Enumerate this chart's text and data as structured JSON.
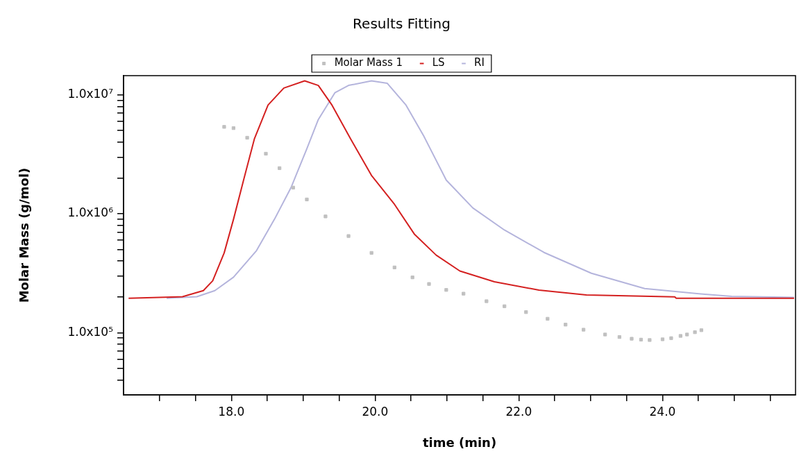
{
  "chart_data": {
    "type": "line",
    "title": "Results Fitting",
    "xlabel": "time (min)",
    "ylabel": "Molar Mass (g/mol)",
    "log": "y",
    "grid": false,
    "legend": "top",
    "line_style": "solid",
    "xlim": [
      16.5,
      25.85
    ],
    "xticks": [
      {
        "value": 17,
        "label": null
      },
      {
        "value": 17.5,
        "label": null
      },
      {
        "value": 18,
        "label": "18.0"
      },
      {
        "value": 18.5,
        "label": null
      },
      {
        "value": 19,
        "label": null
      },
      {
        "value": 19.5,
        "label": null
      },
      {
        "value": 20,
        "label": "20.0"
      },
      {
        "value": 20.5,
        "label": null
      },
      {
        "value": 21,
        "label": null
      },
      {
        "value": 21.5,
        "label": null
      },
      {
        "value": 22,
        "label": "22.0"
      },
      {
        "value": 22.5,
        "label": null
      },
      {
        "value": 23,
        "label": null
      },
      {
        "value": 23.5,
        "label": null
      },
      {
        "value": 24,
        "label": "24.0"
      },
      {
        "value": 24.5,
        "label": null
      },
      {
        "value": 25,
        "label": null
      },
      {
        "value": 25.5,
        "label": null
      }
    ],
    "ylim": [
      30000,
      14500000
    ],
    "yticks": [
      {
        "value": 40000,
        "label": null
      },
      {
        "value": 50000,
        "label": null
      },
      {
        "value": 60000,
        "label": null
      },
      {
        "value": 70000,
        "label": null
      },
      {
        "value": 80000,
        "label": null
      },
      {
        "value": 90000,
        "label": null
      },
      {
        "value": 100000,
        "label": "1.0x10⁵"
      },
      {
        "value": 200000,
        "label": null
      },
      {
        "value": 300000,
        "label": null
      },
      {
        "value": 400000,
        "label": null
      },
      {
        "value": 500000,
        "label": null
      },
      {
        "value": 600000,
        "label": null
      },
      {
        "value": 700000,
        "label": null
      },
      {
        "value": 800000,
        "label": null
      },
      {
        "value": 900000,
        "label": null
      },
      {
        "value": 1000000,
        "label": "1.0x10⁶"
      },
      {
        "value": 2000000,
        "label": null
      },
      {
        "value": 3000000,
        "label": null
      },
      {
        "value": 4000000,
        "label": null
      },
      {
        "value": 5000000,
        "label": null
      },
      {
        "value": 6000000,
        "label": null
      },
      {
        "value": 7000000,
        "label": null
      },
      {
        "value": 8000000,
        "label": null
      },
      {
        "value": 9000000,
        "label": null
      },
      {
        "value": 10000000,
        "label": "1.0x10⁷"
      }
    ],
    "series": [
      {
        "name": "Molar Mass 1",
        "type": "scatter",
        "marker": "square",
        "color": "#c0c0c0",
        "x": [
          17.9,
          18.03,
          18.22,
          18.48,
          18.67,
          18.86,
          19.05,
          19.31,
          19.63,
          19.95,
          20.27,
          20.52,
          20.75,
          20.99,
          21.23,
          21.55,
          21.8,
          22.1,
          22.4,
          22.65,
          22.9,
          23.2,
          23.4,
          23.57,
          23.7,
          23.82,
          24,
          24.12,
          24.25,
          24.34,
          24.45,
          24.54
        ],
        "values": [
          5380000,
          5250000,
          4360000,
          3200000,
          2420000,
          1660000,
          1320000,
          950000,
          650000,
          469000,
          354000,
          292000,
          257000,
          229000,
          213000,
          184000,
          167000,
          149000,
          131000,
          117000,
          106000,
          96600,
          92000,
          89000,
          87500,
          86800,
          88000,
          90000,
          94000,
          96600,
          101000,
          105000
        ]
      },
      {
        "name": "LS",
        "marker": "none",
        "color": "#d42020",
        "x": [
          16.57,
          17.32,
          17.61,
          17.74,
          17.9,
          18.03,
          18.17,
          18.32,
          18.51,
          18.73,
          19.02,
          19.21,
          19.4,
          19.66,
          19.95,
          20.27,
          20.55,
          20.85,
          21.18,
          21.66,
          22.28,
          22.94,
          24.17,
          24.19,
          25.83
        ],
        "values": [
          195000,
          201000,
          226000,
          273000,
          469000,
          900000,
          1920000,
          4260000,
          8200000,
          11400000,
          13100000,
          12000000,
          8200000,
          4260000,
          2100000,
          1200000,
          670000,
          449000,
          330000,
          268000,
          228000,
          208000,
          200000,
          195000,
          195000
        ]
      },
      {
        "name": "RI",
        "marker": "none",
        "color": "#b4b4dc",
        "x": [
          17.1,
          17.52,
          17.77,
          18.03,
          18.35,
          18.6,
          18.83,
          19.05,
          19.21,
          19.44,
          19.63,
          19.95,
          20.17,
          20.43,
          20.68,
          20.99,
          21.36,
          21.8,
          22.35,
          23.01,
          23.75,
          24.48,
          24.96,
          25.83
        ],
        "values": [
          195000,
          201000,
          226000,
          293000,
          490000,
          900000,
          1660000,
          3520000,
          6200000,
          10400000,
          12000000,
          13100000,
          12500000,
          8200000,
          4470000,
          1920000,
          1120000,
          730000,
          473000,
          316000,
          235000,
          213000,
          202000,
          198000
        ]
      }
    ]
  }
}
